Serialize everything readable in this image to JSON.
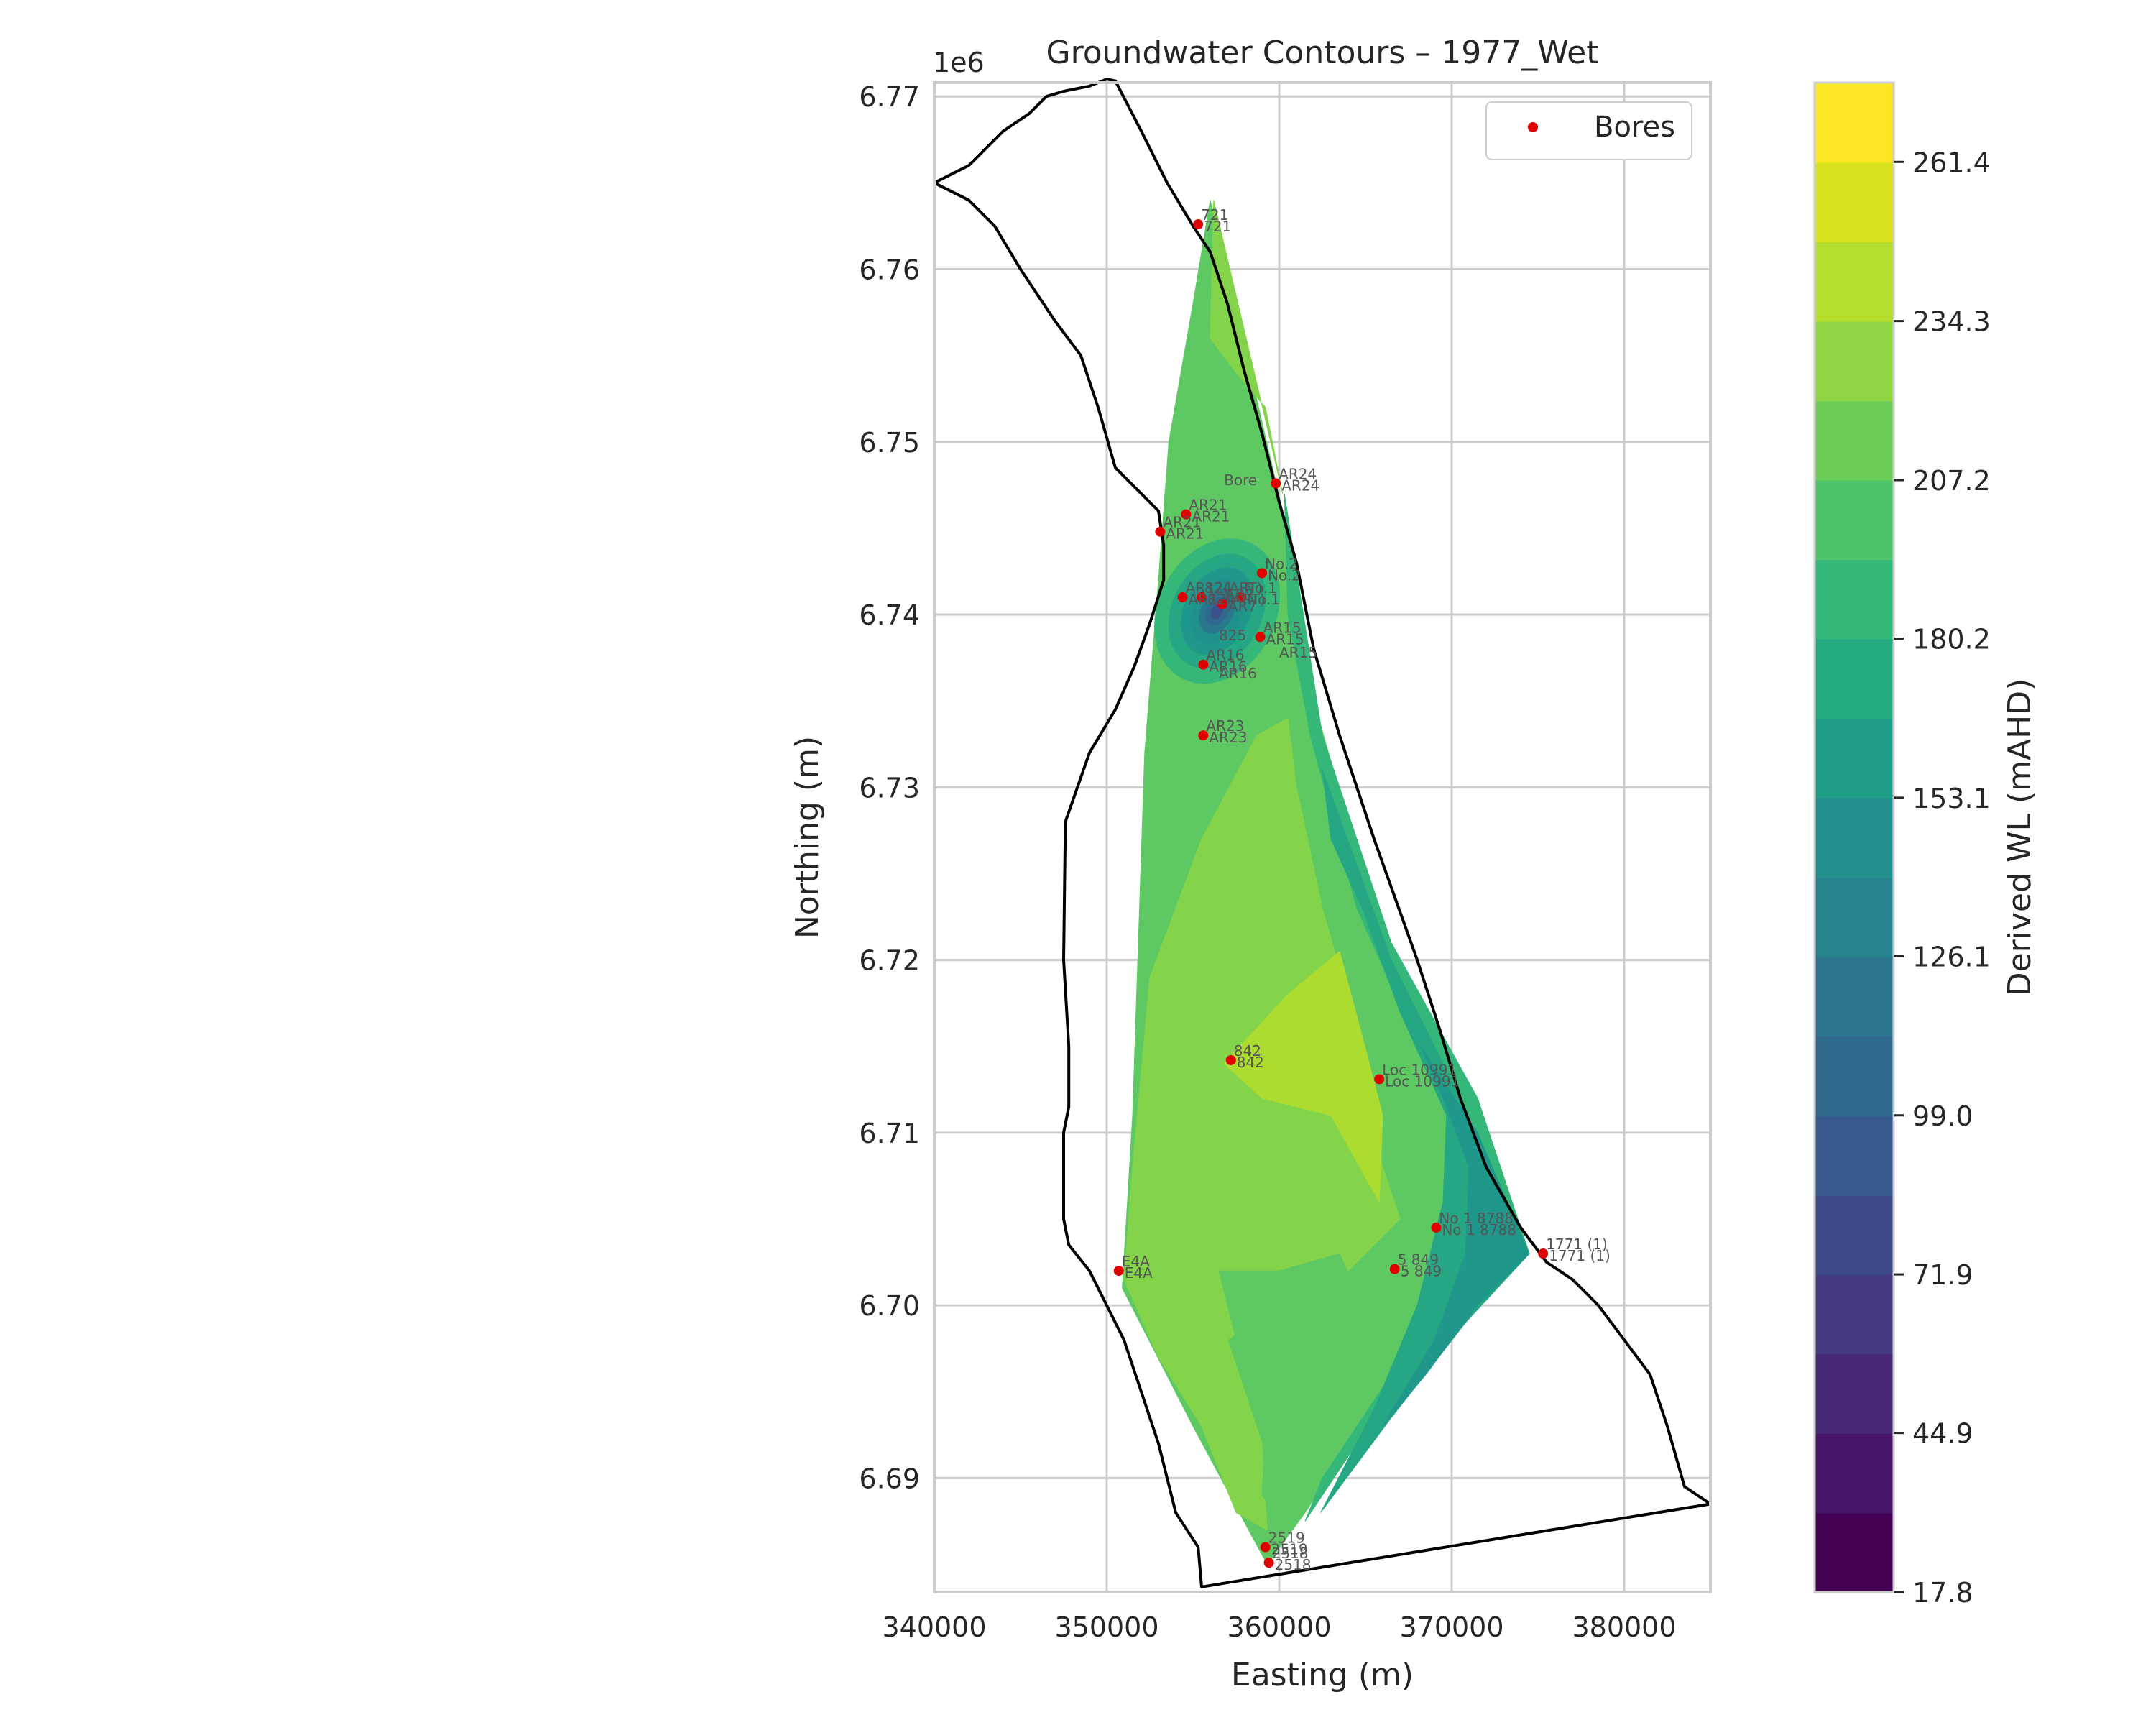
{
  "chart_data": {
    "type": "contour",
    "title": "Groundwater Contours – 1977_Wet",
    "xlabel": "Easting (m)",
    "ylabel": "Northing (m)",
    "y_offset_text": "1e6",
    "xlim": [
      340000,
      385000
    ],
    "ylim": [
      6.6834,
      6.7708
    ],
    "x_ticks": [
      340000,
      350000,
      360000,
      370000,
      380000
    ],
    "x_tick_labels": [
      "340000",
      "350000",
      "360000",
      "370000",
      "380000"
    ],
    "y_ticks": [
      6.69,
      6.7,
      6.71,
      6.72,
      6.73,
      6.74,
      6.75,
      6.76,
      6.77
    ],
    "y_tick_labels": [
      "6.69",
      "6.70",
      "6.71",
      "6.72",
      "6.73",
      "6.74",
      "6.75",
      "6.76",
      "6.77"
    ],
    "grid": true,
    "legend": {
      "position": "upper right",
      "entries": [
        {
          "label": "Bores",
          "marker": "red dot"
        }
      ]
    },
    "colorbar": {
      "label": "Derived WL (mAHD)",
      "colormap": "viridis",
      "min": 17.8,
      "max": 274.9,
      "levels": 19,
      "ticks": [
        17.8,
        44.9,
        71.9,
        99.0,
        126.1,
        153.1,
        180.2,
        207.2,
        234.3,
        261.4
      ],
      "tick_labels": [
        "17.8",
        "44.9",
        "71.9",
        "99.0",
        "126.1",
        "153.1",
        "180.2",
        "207.2",
        "234.3",
        "261.4"
      ]
    },
    "boundary": [
      [
        340000,
        6.765
      ],
      [
        342000,
        6.766
      ],
      [
        344000,
        6.768
      ],
      [
        345500,
        6.769
      ],
      [
        346500,
        6.77
      ],
      [
        347500,
        6.7703
      ],
      [
        349000,
        6.7706
      ],
      [
        350000,
        6.771
      ],
      [
        350500,
        6.7709
      ],
      [
        352000,
        6.768
      ],
      [
        353500,
        6.765
      ],
      [
        355000,
        6.7625
      ],
      [
        356000,
        6.761
      ],
      [
        357000,
        6.758
      ],
      [
        358000,
        6.754
      ],
      [
        359000,
        6.7505
      ],
      [
        360000,
        6.7465
      ],
      [
        361000,
        6.743
      ],
      [
        362000,
        6.738
      ],
      [
        363500,
        6.733
      ],
      [
        365500,
        6.727
      ],
      [
        368000,
        6.72
      ],
      [
        369300,
        6.716
      ],
      [
        370500,
        6.712
      ],
      [
        372000,
        6.708
      ],
      [
        374000,
        6.7045
      ],
      [
        375500,
        6.7025
      ],
      [
        377000,
        6.7015
      ],
      [
        378500,
        6.7
      ],
      [
        380000,
        6.698
      ],
      [
        381500,
        6.696
      ],
      [
        382500,
        6.693
      ],
      [
        383500,
        6.6895
      ],
      [
        385000,
        6.6885
      ],
      [
        355500,
        6.6837
      ],
      [
        355300,
        6.686
      ],
      [
        354000,
        6.688
      ],
      [
        353000,
        6.692
      ],
      [
        352000,
        6.695
      ],
      [
        351000,
        6.698
      ],
      [
        350000,
        6.7
      ],
      [
        349000,
        6.702
      ],
      [
        347800,
        6.7035
      ],
      [
        347500,
        6.705
      ],
      [
        347500,
        6.71
      ],
      [
        347800,
        6.7115
      ],
      [
        347800,
        6.715
      ],
      [
        347500,
        6.72
      ],
      [
        347600,
        6.728
      ],
      [
        349000,
        6.732
      ],
      [
        350500,
        6.7345
      ],
      [
        351600,
        6.737
      ],
      [
        352500,
        6.7395
      ],
      [
        353300,
        6.742
      ],
      [
        353300,
        6.744
      ],
      [
        353000,
        6.746
      ],
      [
        351500,
        6.7475
      ],
      [
        350500,
        6.7485
      ],
      [
        349500,
        6.752
      ],
      [
        348500,
        6.755
      ],
      [
        347000,
        6.757
      ],
      [
        345000,
        6.76
      ],
      [
        343500,
        6.7625
      ],
      [
        342000,
        6.764
      ],
      [
        340000,
        6.765
      ]
    ],
    "bores": [
      {
        "label": "721",
        "x": 355300,
        "y": 6.7626
      },
      {
        "label": "AR24",
        "x": 359800,
        "y": 6.7476
      },
      {
        "label": "AR21",
        "x": 353100,
        "y": 6.7448
      },
      {
        "label": "AR21",
        "x": 354600,
        "y": 6.7458
      },
      {
        "label": "AR12(ART)",
        "x": 354400,
        "y": 6.741
      },
      {
        "label": "824",
        "x": 355500,
        "y": 6.741
      },
      {
        "label": "AR7",
        "x": 356700,
        "y": 6.7406
      },
      {
        "label": "No.1",
        "x": 357800,
        "y": 6.741
      },
      {
        "label": "No.2",
        "x": 359000,
        "y": 6.7424
      },
      {
        "label": "AR15",
        "x": 358900,
        "y": 6.7387
      },
      {
        "label": "AR16",
        "x": 355600,
        "y": 6.7371
      },
      {
        "label": "AR23",
        "x": 355600,
        "y": 6.733
      },
      {
        "label": "842",
        "x": 357200,
        "y": 6.7142
      },
      {
        "label": "Loc 10991",
        "x": 365800,
        "y": 6.7131
      },
      {
        "label": "No 1 8788",
        "x": 369100,
        "y": 6.7045
      },
      {
        "label": "1771 (1)",
        "x": 375300,
        "y": 6.703
      },
      {
        "label": "5 849",
        "x": 366700,
        "y": 6.7021
      },
      {
        "label": "E4A",
        "x": 350700,
        "y": 6.702
      },
      {
        "label": "2519",
        "x": 359200,
        "y": 6.686
      },
      {
        "label": "2518",
        "x": 359400,
        "y": 6.6851
      }
    ],
    "extra_annotations": [
      "Bore",
      "825",
      "AR16",
      "AR15"
    ],
    "contour_regions": [
      {
        "level": 207.2,
        "color": "#5ec962",
        "outline": [
          [
            356000,
            6.764
          ],
          [
            360200,
            6.746
          ],
          [
            362000,
            6.735
          ],
          [
            366000,
            6.721
          ],
          [
            371500,
            6.712
          ],
          [
            374500,
            6.703
          ],
          [
            370000,
            6.7
          ],
          [
            366000,
            6.695
          ],
          [
            361500,
            6.688
          ],
          [
            359300,
            6.685
          ],
          [
            355000,
            6.693
          ],
          [
            350900,
            6.701
          ],
          [
            351500,
            6.711
          ],
          [
            352200,
            6.732
          ],
          [
            353000,
            6.742
          ],
          [
            353600,
            6.75
          ],
          [
            355000,
            6.758
          ]
        ]
      },
      {
        "level": 193.7,
        "color": "#35b779",
        "outline": [
          [
            360300,
            6.747
          ],
          [
            362500,
            6.733
          ],
          [
            366500,
            6.721
          ],
          [
            371500,
            6.712
          ],
          [
            374500,
            6.703
          ],
          [
            370500,
            6.701
          ],
          [
            366500,
            6.695
          ],
          [
            361500,
            6.6875
          ],
          [
            362500,
            6.69
          ],
          [
            366500,
            6.696
          ],
          [
            369500,
            6.703
          ],
          [
            371000,
            6.709
          ],
          [
            368500,
            6.714
          ],
          [
            364500,
            6.723
          ],
          [
            361800,
            6.733
          ],
          [
            360500,
            6.74
          ]
        ]
      },
      {
        "level": 180.2,
        "color": "#26a784",
        "outline": [
          [
            362500,
            6.731
          ],
          [
            366500,
            6.72
          ],
          [
            370500,
            6.712
          ],
          [
            374500,
            6.703
          ],
          [
            370800,
            6.699
          ],
          [
            366500,
            6.6935
          ],
          [
            362400,
            6.688
          ],
          [
            365500,
            6.694
          ],
          [
            368000,
            6.7
          ],
          [
            369500,
            6.706
          ],
          [
            369700,
            6.711
          ],
          [
            367000,
            6.717
          ],
          [
            364800,
            6.723
          ],
          [
            363000,
            6.727
          ]
        ]
      },
      {
        "level": 166.6,
        "color": "#1f988b",
        "outline": [
          [
            368200,
            6.715
          ],
          [
            371500,
            6.71
          ],
          [
            374500,
            6.703
          ],
          [
            371500,
            6.7
          ],
          [
            368500,
            6.696
          ],
          [
            366000,
            6.693
          ],
          [
            369000,
            6.698
          ],
          [
            370800,
            6.703
          ],
          [
            371000,
            6.708
          ],
          [
            369500,
            6.712
          ]
        ]
      },
      {
        "level": 220.8,
        "color": "#84d44b",
        "outline": [
          [
            351000,
            6.7015
          ],
          [
            351500,
            6.708
          ],
          [
            352500,
            6.719
          ],
          [
            355500,
            6.727
          ],
          [
            358700,
            6.733
          ],
          [
            360500,
            6.734
          ],
          [
            361000,
            6.73
          ],
          [
            362500,
            6.723
          ],
          [
            364500,
            6.716
          ],
          [
            366000,
            6.708
          ],
          [
            367000,
            6.705
          ],
          [
            364000,
            6.702
          ],
          [
            360000,
            6.7
          ],
          [
            357000,
            6.698
          ],
          [
            359000,
            6.692
          ],
          [
            359300,
            6.687
          ],
          [
            357500,
            6.688
          ],
          [
            355500,
            6.693
          ],
          [
            353000,
            6.697
          ]
        ]
      },
      {
        "level": 207.2,
        "color": "#5ec962",
        "outline": [
          [
            356500,
            6.702
          ],
          [
            360000,
            6.702
          ],
          [
            363500,
            6.703
          ],
          [
            364800,
            6.7
          ],
          [
            363500,
            6.696
          ],
          [
            361500,
            6.691
          ],
          [
            359800,
            6.688
          ],
          [
            359000,
            6.689
          ],
          [
            359200,
            6.693
          ],
          [
            357500,
            6.698
          ]
        ]
      },
      {
        "level": 234.3,
        "color": "#addc30",
        "outline": [
          [
            356800,
            6.714
          ],
          [
            360500,
            6.718
          ],
          [
            363500,
            6.7205
          ],
          [
            364700,
            6.716
          ],
          [
            366000,
            6.711
          ],
          [
            365800,
            6.706
          ],
          [
            363000,
            6.711
          ],
          [
            359000,
            6.712
          ]
        ]
      },
      {
        "level": 220.8,
        "color": "#84d44b",
        "outline": [
          [
            356200,
            6.764
          ],
          [
            356000,
            6.756
          ],
          [
            357500,
            6.754
          ],
          [
            359200,
            6.752
          ],
          [
            360200,
            6.747
          ],
          [
            359500,
            6.75
          ]
        ]
      }
    ],
    "depression": {
      "center": [
        356400,
        6.7402
      ],
      "rings": [
        {
          "level": 193.7,
          "color": "#35b779",
          "rx": 3400,
          "ry": 0.0044
        },
        {
          "level": 180.2,
          "color": "#26a784",
          "rx": 2600,
          "ry": 0.0035
        },
        {
          "level": 166.6,
          "color": "#1f988b",
          "rx": 1900,
          "ry": 0.0027
        },
        {
          "level": 153.1,
          "color": "#21918c",
          "rx": 1400,
          "ry": 0.002
        },
        {
          "level": 139.6,
          "color": "#2a788e",
          "rx": 950,
          "ry": 0.0014
        },
        {
          "level": 126.1,
          "color": "#31688e",
          "rx": 600,
          "ry": 0.0009
        },
        {
          "level": 112.5,
          "color": "#3b528b",
          "rx": 320,
          "ry": 0.0005
        }
      ]
    }
  }
}
